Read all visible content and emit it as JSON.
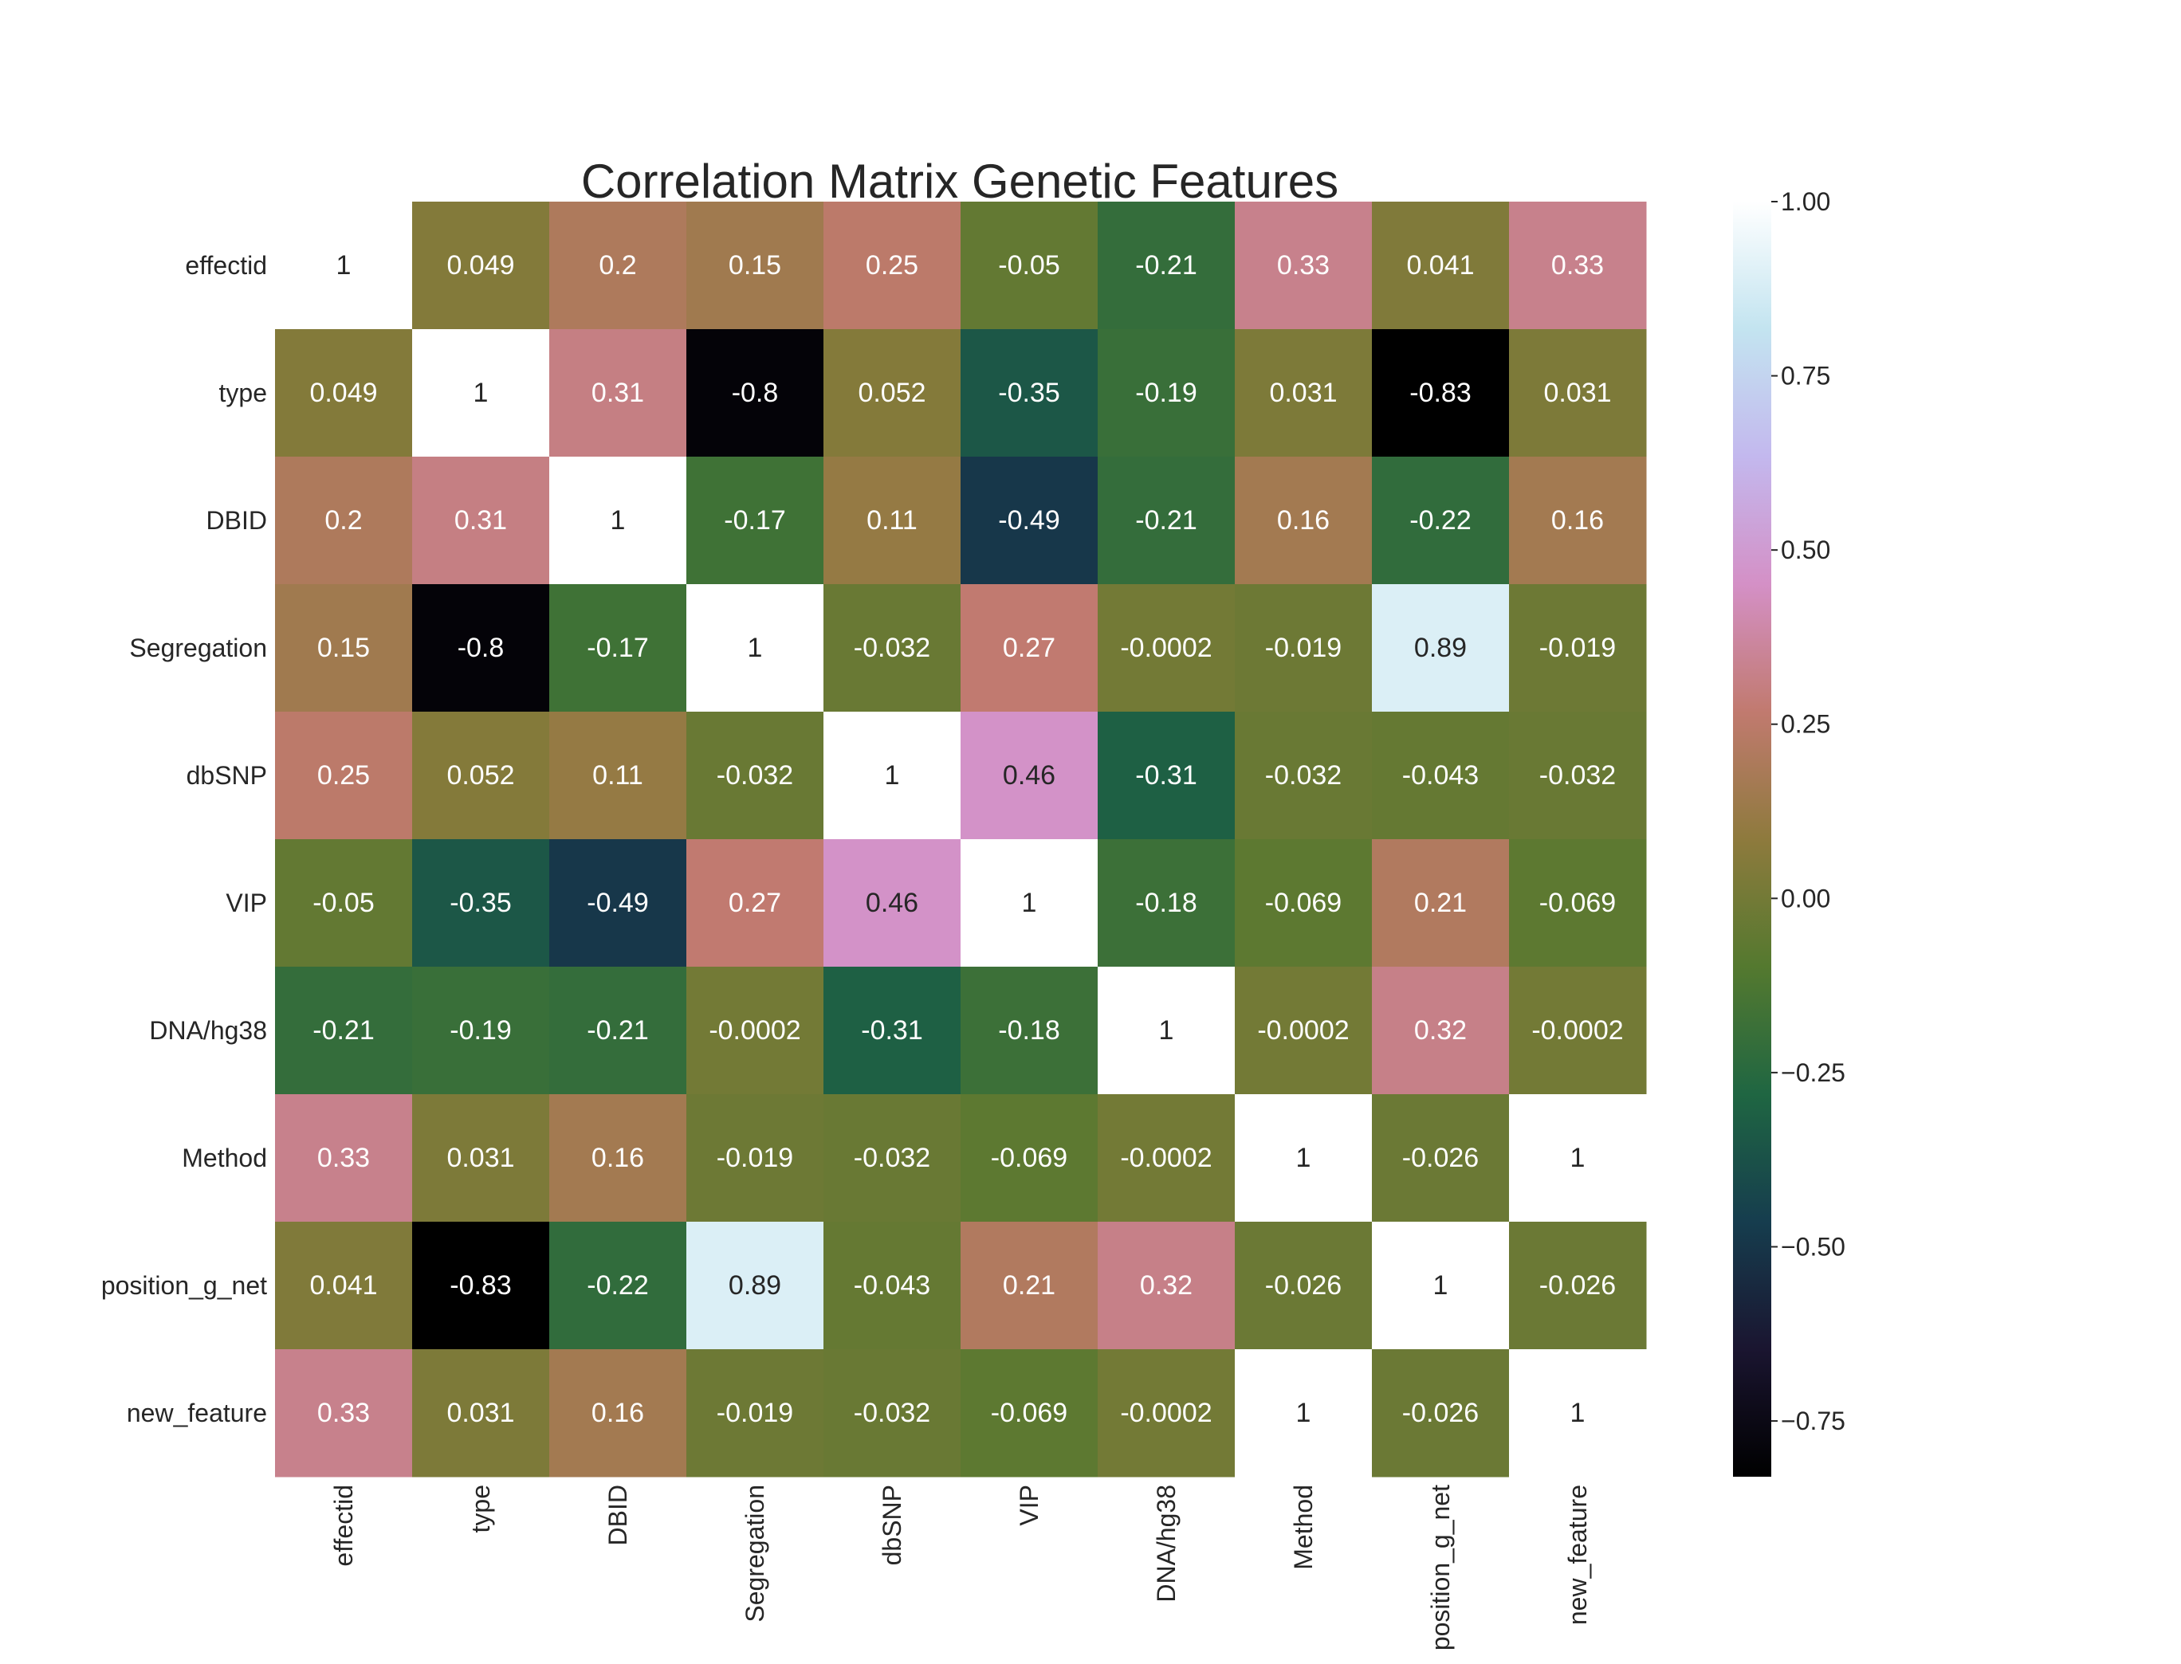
{
  "chart_data": {
    "type": "heatmap",
    "title": "Correlation Matrix Genetic Features",
    "xlabel": "",
    "ylabel": "",
    "rows": [
      "effectid",
      "type",
      "DBID",
      "Segregation",
      "dbSNP",
      "VIP",
      "DNA/hg38",
      "Method",
      "position_g_net",
      "new_feature"
    ],
    "columns": [
      "effectid",
      "type",
      "DBID",
      "Segregation",
      "dbSNP",
      "VIP",
      "DNA/hg38",
      "Method",
      "position_g_net",
      "new_feature"
    ],
    "values": [
      [
        1,
        0.049,
        0.2,
        0.15,
        0.25,
        -0.05,
        -0.21,
        0.33,
        0.041,
        0.33
      ],
      [
        0.049,
        1,
        0.31,
        -0.8,
        0.052,
        -0.35,
        -0.19,
        0.031,
        -0.83,
        0.031
      ],
      [
        0.2,
        0.31,
        1,
        -0.17,
        0.11,
        -0.49,
        -0.21,
        0.16,
        -0.22,
        0.16
      ],
      [
        0.15,
        -0.8,
        -0.17,
        1,
        -0.032,
        0.27,
        -0.0002,
        -0.019,
        0.89,
        -0.019
      ],
      [
        0.25,
        0.052,
        0.11,
        -0.032,
        1,
        0.46,
        -0.31,
        -0.032,
        -0.043,
        -0.032
      ],
      [
        -0.05,
        -0.35,
        -0.49,
        0.27,
        0.46,
        1,
        -0.18,
        -0.069,
        0.21,
        -0.069
      ],
      [
        -0.21,
        -0.19,
        -0.21,
        -0.0002,
        -0.31,
        -0.18,
        1,
        -0.0002,
        0.32,
        -0.0002
      ],
      [
        0.33,
        0.031,
        0.16,
        -0.019,
        -0.032,
        -0.069,
        -0.0002,
        1,
        -0.026,
        1
      ],
      [
        0.041,
        -0.83,
        -0.22,
        0.89,
        -0.043,
        0.21,
        0.32,
        -0.026,
        1,
        -0.026
      ],
      [
        0.33,
        0.031,
        0.16,
        -0.019,
        -0.032,
        -0.069,
        -0.0002,
        1,
        -0.026,
        1
      ]
    ],
    "annotations": [
      [
        "1",
        "0.049",
        "0.2",
        "0.15",
        "0.25",
        "-0.05",
        "-0.21",
        "0.33",
        "0.041",
        "0.33"
      ],
      [
        "0.049",
        "1",
        "0.31",
        "-0.8",
        "0.052",
        "-0.35",
        "-0.19",
        "0.031",
        "-0.83",
        "0.031"
      ],
      [
        "0.2",
        "0.31",
        "1",
        "-0.17",
        "0.11",
        "-0.49",
        "-0.21",
        "0.16",
        "-0.22",
        "0.16"
      ],
      [
        "0.15",
        "-0.8",
        "-0.17",
        "1",
        "-0.032",
        "0.27",
        "-0.0002",
        "-0.019",
        "0.89",
        "-0.019"
      ],
      [
        "0.25",
        "0.052",
        "0.11",
        "-0.032",
        "1",
        "0.46",
        "-0.31",
        "-0.032",
        "-0.043",
        "-0.032"
      ],
      [
        "-0.05",
        "-0.35",
        "-0.49",
        "0.27",
        "0.46",
        "1",
        "-0.18",
        "-0.069",
        "0.21",
        "-0.069"
      ],
      [
        "-0.21",
        "-0.19",
        "-0.21",
        "-0.0002",
        "-0.31",
        "-0.18",
        "1",
        "-0.0002",
        "0.32",
        "-0.0002"
      ],
      [
        "0.33",
        "0.031",
        "0.16",
        "-0.019",
        "-0.032",
        "-0.069",
        "-0.0002",
        "1",
        "-0.026",
        "1"
      ],
      [
        "0.041",
        "-0.83",
        "-0.22",
        "0.89",
        "-0.043",
        "0.21",
        "0.32",
        "-0.026",
        "1",
        "-0.026"
      ],
      [
        "0.33",
        "0.031",
        "0.16",
        "-0.019",
        "-0.032",
        "-0.069",
        "-0.0002",
        "1",
        "-0.026",
        "1"
      ]
    ],
    "colorbar": {
      "range": [
        -0.83,
        1.0
      ],
      "ticks": [
        -0.75,
        -0.5,
        -0.25,
        0.0,
        0.25,
        0.5,
        0.75,
        1.0
      ],
      "tick_labels": [
        "−0.75",
        "−0.50",
        "−0.25",
        "0.00",
        "0.25",
        "0.50",
        "0.75",
        "1.00"
      ],
      "colormap": "cubehelix",
      "color_stops": [
        "#000000",
        "#1a1530",
        "#163d4e",
        "#1f6642",
        "#54792f",
        "#8e7a3d",
        "#c17a6f",
        "#d490c6",
        "#c3b8ee",
        "#c3e4f0",
        "#ffffff"
      ]
    },
    "grid": false
  }
}
